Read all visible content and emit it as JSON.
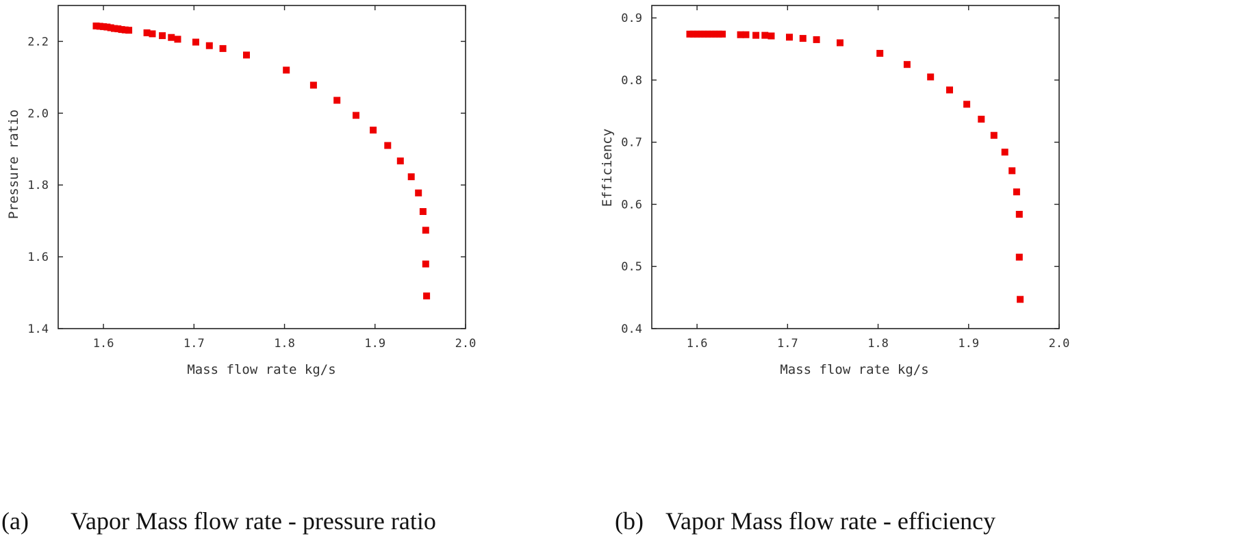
{
  "colors": {
    "marker": "#ee0000",
    "axis": "#222222",
    "text": "#333333"
  },
  "chart_data": [
    {
      "id": "a",
      "type": "scatter",
      "caption_label": "(a)",
      "caption_text": "Vapor Mass flow rate - pressure ratio",
      "xlabel": "Mass flow rate kg/s",
      "ylabel": "Pressure ratio",
      "xlim": [
        1.55,
        2.0
      ],
      "ylim": [
        1.4,
        2.3
      ],
      "xticks": [
        "1.6",
        "1.7",
        "1.8",
        "1.9",
        "2.0"
      ],
      "xtick_values": [
        1.6,
        1.7,
        1.8,
        1.9,
        2.0
      ],
      "yticks": [
        "1.4",
        "1.6",
        "1.8",
        "2.0",
        "2.2"
      ],
      "ytick_values": [
        1.4,
        1.6,
        1.8,
        2.0,
        2.2
      ],
      "grid": false,
      "points": [
        [
          1.592,
          2.243
        ],
        [
          1.596,
          2.242
        ],
        [
          1.6,
          2.241
        ],
        [
          1.604,
          2.24
        ],
        [
          1.608,
          2.238
        ],
        [
          1.612,
          2.236
        ],
        [
          1.616,
          2.235
        ],
        [
          1.62,
          2.233
        ],
        [
          1.624,
          2.232
        ],
        [
          1.628,
          2.231
        ],
        [
          1.648,
          2.224
        ],
        [
          1.654,
          2.221
        ],
        [
          1.665,
          2.216
        ],
        [
          1.675,
          2.211
        ],
        [
          1.682,
          2.206
        ],
        [
          1.702,
          2.198
        ],
        [
          1.717,
          2.188
        ],
        [
          1.732,
          2.18
        ],
        [
          1.758,
          2.162
        ],
        [
          1.802,
          2.12
        ],
        [
          1.832,
          2.078
        ],
        [
          1.858,
          2.036
        ],
        [
          1.879,
          1.994
        ],
        [
          1.898,
          1.953
        ],
        [
          1.914,
          1.91
        ],
        [
          1.928,
          1.867
        ],
        [
          1.94,
          1.823
        ],
        [
          1.948,
          1.778
        ],
        [
          1.953,
          1.726
        ],
        [
          1.956,
          1.674
        ],
        [
          1.956,
          1.58
        ],
        [
          1.957,
          1.491
        ]
      ]
    },
    {
      "id": "b",
      "type": "scatter",
      "caption_label": "(b)",
      "caption_text": "Vapor Mass flow rate - efficiency",
      "xlabel": "Mass flow rate kg/s",
      "ylabel": "Efficiency",
      "xlim": [
        1.55,
        2.0
      ],
      "ylim": [
        0.4,
        0.92
      ],
      "xticks": [
        "1.6",
        "1.7",
        "1.8",
        "1.9",
        "2.0"
      ],
      "xtick_values": [
        1.6,
        1.7,
        1.8,
        1.9,
        2.0
      ],
      "yticks": [
        "0.4",
        "0.5",
        "0.6",
        "0.7",
        "0.8",
        "0.9"
      ],
      "ytick_values": [
        0.4,
        0.5,
        0.6,
        0.7,
        0.8,
        0.9
      ],
      "grid": false,
      "points": [
        [
          1.592,
          0.874
        ],
        [
          1.596,
          0.874
        ],
        [
          1.6,
          0.874
        ],
        [
          1.604,
          0.874
        ],
        [
          1.608,
          0.874
        ],
        [
          1.612,
          0.874
        ],
        [
          1.616,
          0.874
        ],
        [
          1.62,
          0.874
        ],
        [
          1.624,
          0.874
        ],
        [
          1.628,
          0.874
        ],
        [
          1.648,
          0.873
        ],
        [
          1.654,
          0.873
        ],
        [
          1.665,
          0.872
        ],
        [
          1.675,
          0.872
        ],
        [
          1.682,
          0.871
        ],
        [
          1.702,
          0.869
        ],
        [
          1.717,
          0.867
        ],
        [
          1.732,
          0.865
        ],
        [
          1.758,
          0.86
        ],
        [
          1.802,
          0.843
        ],
        [
          1.832,
          0.825
        ],
        [
          1.858,
          0.805
        ],
        [
          1.879,
          0.784
        ],
        [
          1.898,
          0.761
        ],
        [
          1.914,
          0.737
        ],
        [
          1.928,
          0.711
        ],
        [
          1.94,
          0.684
        ],
        [
          1.948,
          0.654
        ],
        [
          1.953,
          0.62
        ],
        [
          1.956,
          0.584
        ],
        [
          1.956,
          0.515
        ],
        [
          1.957,
          0.447
        ]
      ]
    }
  ]
}
